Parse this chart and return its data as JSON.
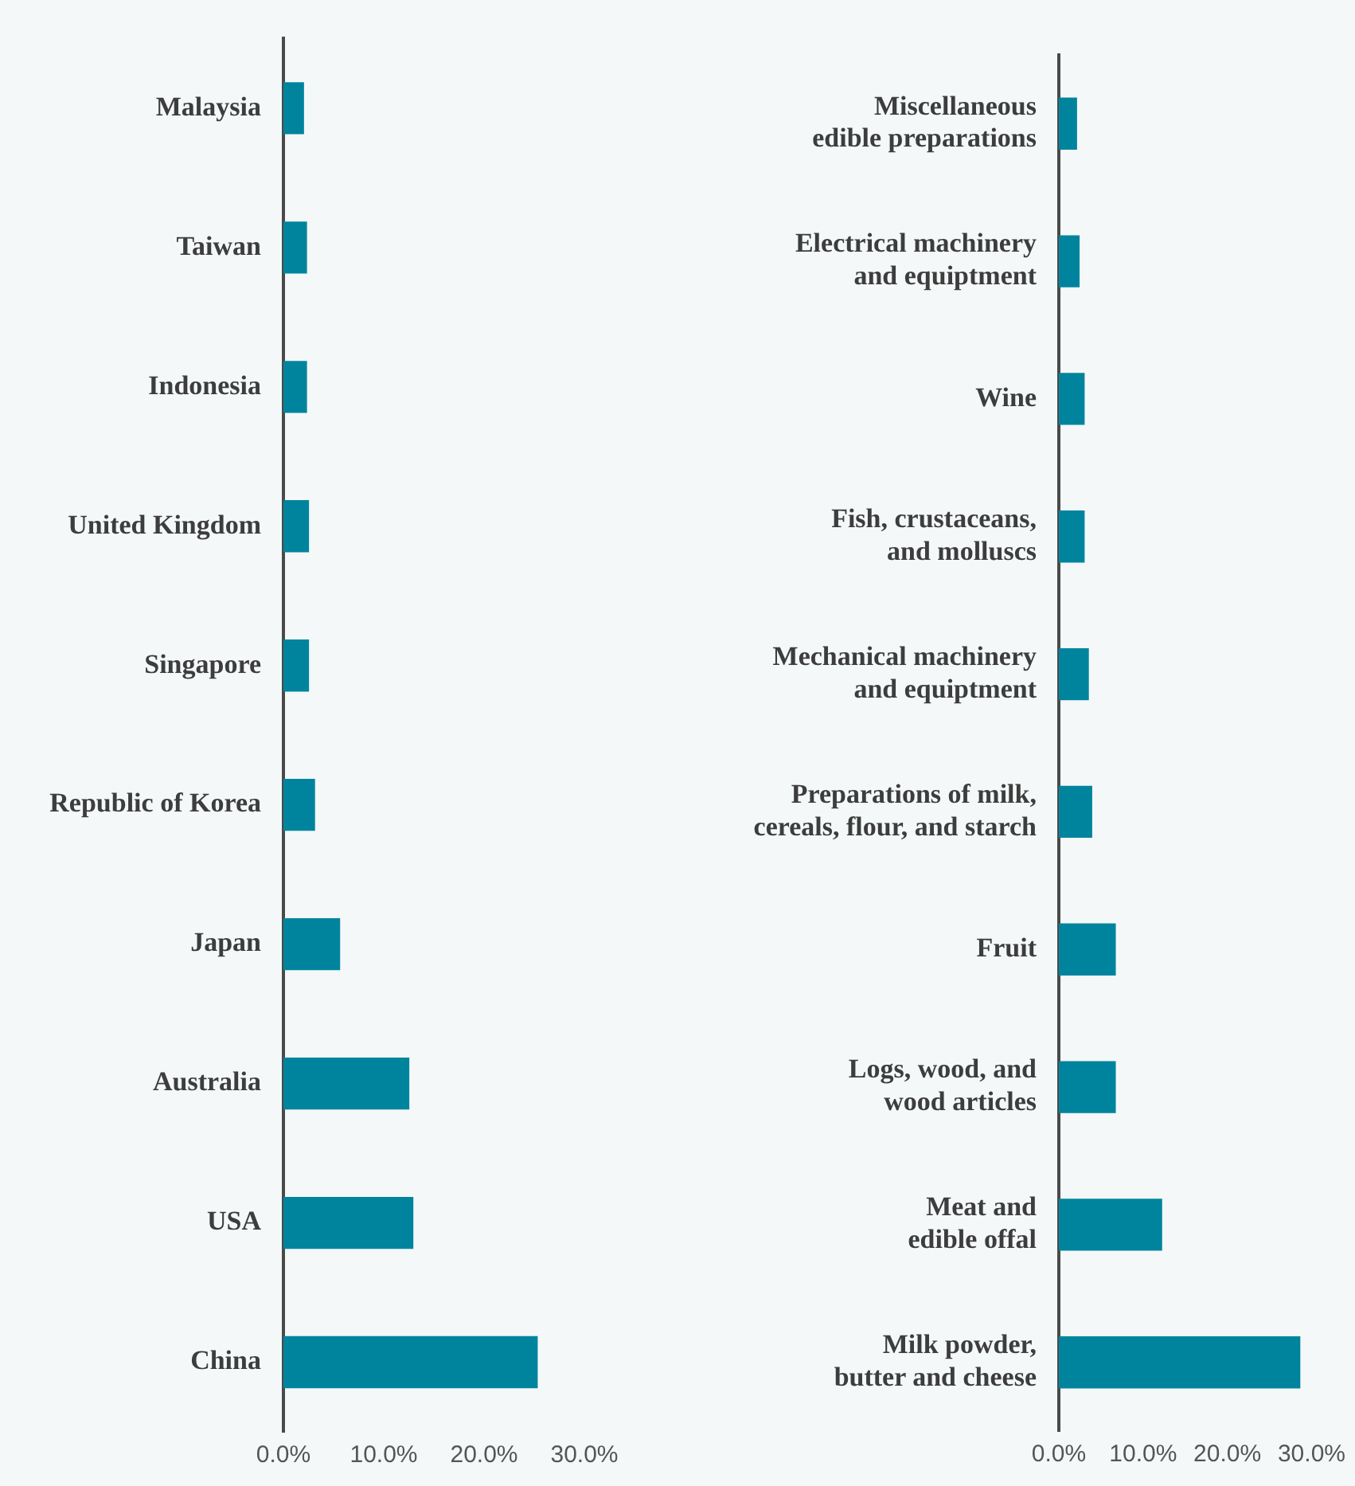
{
  "chart_data": [
    {
      "type": "bar",
      "orientation": "horizontal",
      "categories": [
        "Malaysia",
        "Taiwan",
        "Indonesia",
        "United Kingdom",
        "Singapore",
        "Republic of Korea",
        "Japan",
        "Australia",
        "USA",
        "China"
      ],
      "values": [
        2.0,
        2.3,
        2.3,
        2.5,
        2.5,
        3.1,
        5.6,
        12.5,
        12.9,
        25.3
      ],
      "color": "#00849e",
      "xlim": [
        0,
        30
      ],
      "xticks": [
        {
          "value": 0,
          "label": "0.0%"
        },
        {
          "value": 10,
          "label": "10.0%"
        },
        {
          "value": 20,
          "label": "20.0%"
        },
        {
          "value": 30,
          "label": "30.0%"
        }
      ],
      "grid": false,
      "legend": false
    },
    {
      "type": "bar",
      "orientation": "horizontal",
      "categories": [
        "Miscellaneous\nedible preparations",
        "Electrical machinery\nand equiptment",
        "Wine",
        "Fish, crustaceans,\nand molluscs",
        "Mechanical machinery\nand equiptment",
        "Preparations of milk,\ncereals, flour, and starch",
        "Fruit",
        "Logs, wood, and\nwood articles",
        "Meat and\nedible offal",
        "Milk powder,\nbutter and cheese"
      ],
      "values": [
        2.1,
        2.4,
        3.0,
        3.0,
        3.5,
        3.9,
        6.7,
        6.7,
        12.2,
        28.6
      ],
      "color": "#00849e",
      "xlim": [
        0,
        30
      ],
      "xticks": [
        {
          "value": 0,
          "label": "0.0%"
        },
        {
          "value": 10,
          "label": "10.0%"
        },
        {
          "value": 20,
          "label": "20.0%"
        },
        {
          "value": 30,
          "label": "30.0%"
        }
      ],
      "grid": false,
      "legend": false
    }
  ]
}
